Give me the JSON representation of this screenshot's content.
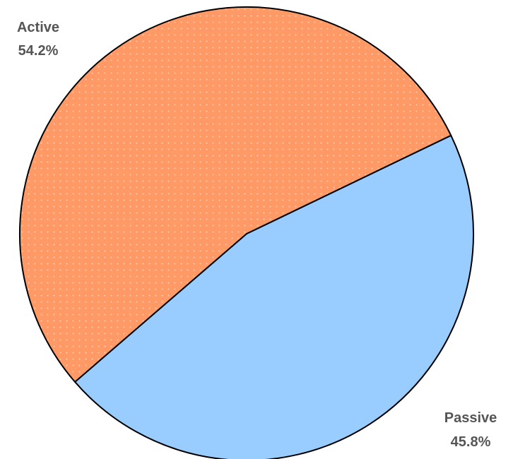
{
  "chart_data": {
    "type": "pie",
    "title": "",
    "slices": [
      {
        "label": "Active",
        "percent_label": "54.2%",
        "value": 54.2,
        "color": "#ff9966",
        "pattern": "dots"
      },
      {
        "label": "Passive",
        "percent_label": "45.8%",
        "value": 45.8,
        "color": "#99ccff",
        "pattern": "none"
      }
    ],
    "legend": false,
    "label_position": "outside"
  }
}
